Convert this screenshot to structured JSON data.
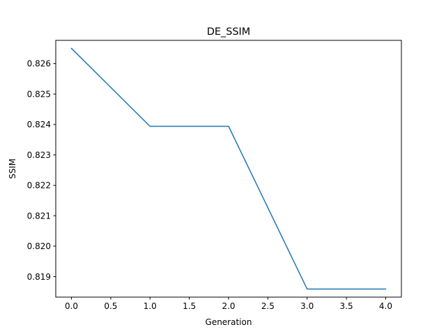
{
  "chart_data": {
    "type": "line",
    "title": "DE_SSIM",
    "xlabel": "Generation",
    "ylabel": "SSIM",
    "x": [
      0,
      1,
      2,
      3,
      4
    ],
    "series": [
      {
        "values": [
          0.8265,
          0.82394,
          0.82394,
          0.81859,
          0.81859
        ],
        "color": "#1f77b4"
      }
    ],
    "xlim": [
      -0.2,
      4.2
    ],
    "ylim": [
      0.818325,
      0.826765
    ],
    "xticks": [
      0.0,
      0.5,
      1.0,
      1.5,
      2.0,
      2.5,
      3.0,
      3.5,
      4.0
    ],
    "xtick_labels": [
      "0.0",
      "0.5",
      "1.0",
      "1.5",
      "2.0",
      "2.5",
      "3.0",
      "3.5",
      "4.0"
    ],
    "yticks": [
      0.819,
      0.82,
      0.821,
      0.822,
      0.823,
      0.824,
      0.825,
      0.826
    ],
    "ytick_labels": [
      "0.819",
      "0.820",
      "0.821",
      "0.822",
      "0.823",
      "0.824",
      "0.825",
      "0.826"
    ],
    "grid": false,
    "legend": "none"
  }
}
